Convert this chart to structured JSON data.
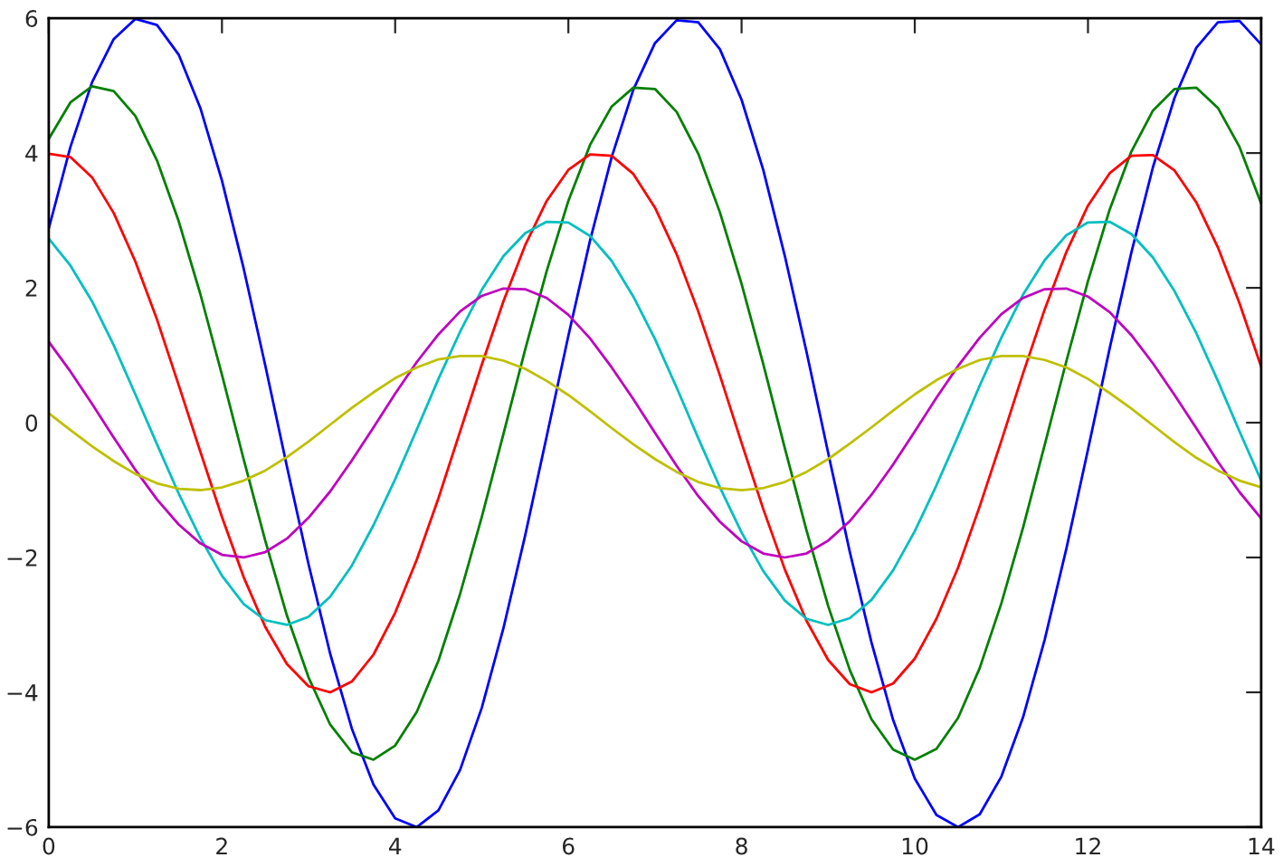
{
  "chart_data": {
    "type": "line",
    "x": [
      0,
      0.25,
      0.5,
      0.75,
      1,
      1.25,
      1.5,
      1.75,
      2,
      2.25,
      2.5,
      2.75,
      3,
      3.25,
      3.5,
      3.75,
      4,
      4.25,
      4.5,
      4.75,
      5,
      5.25,
      5.5,
      5.75,
      6,
      6.25,
      6.5,
      6.75,
      7,
      7.25,
      7.5,
      7.75,
      8,
      8.25,
      8.5,
      8.75,
      9,
      9.25,
      9.5,
      9.75,
      10,
      10.25,
      10.5,
      10.75,
      11,
      11.25,
      11.5,
      11.75,
      12,
      12.25,
      12.5,
      12.75,
      13,
      13.25,
      13.5,
      13.75,
      14
    ],
    "series": [
      {
        "color": "#0000ff",
        "values": [
          2.88,
          4.09,
          5.05,
          5.69,
          5.99,
          5.9,
          5.46,
          4.67,
          3.59,
          2.29,
          0.85,
          -0.65,
          -2.1,
          -3.43,
          -4.54,
          -5.37,
          -5.87,
          -6.0,
          -5.75,
          -5.15,
          -4.23,
          -3.05,
          -1.68,
          -0.2,
          1.29,
          2.7,
          3.94,
          4.94,
          5.63,
          5.97,
          5.94,
          5.54,
          4.79,
          3.75,
          2.47,
          1.05,
          -0.45,
          -1.92,
          -3.26,
          -4.41,
          -5.28,
          -5.82,
          -6.0,
          -5.81,
          -5.25,
          -4.37,
          -3.22,
          -1.87,
          -0.4,
          1.1,
          2.52,
          3.79,
          4.82,
          5.56,
          5.94,
          5.96,
          5.61
        ]
      },
      {
        "color": "#008000",
        "values": [
          4.21,
          4.75,
          4.99,
          4.92,
          4.55,
          3.89,
          2.99,
          1.91,
          0.71,
          -0.54,
          -1.75,
          -2.86,
          -3.78,
          -4.48,
          -4.89,
          -5.0,
          -4.79,
          -4.29,
          -3.53,
          -2.54,
          -1.4,
          -0.17,
          1.08,
          2.25,
          3.29,
          4.12,
          4.69,
          4.97,
          4.95,
          4.61,
          3.99,
          3.12,
          2.06,
          0.87,
          -0.38,
          -1.6,
          -2.72,
          -3.67,
          -4.4,
          -4.85,
          -5.0,
          -4.84,
          -4.38,
          -3.64,
          -2.68,
          -1.56,
          -0.33,
          0.91,
          2.1,
          3.16,
          4.02,
          4.63,
          4.95,
          4.97,
          4.67,
          4.09,
          3.25
        ]
      },
      {
        "color": "#ff0000",
        "values": [
          3.99,
          3.94,
          3.64,
          3.11,
          2.39,
          1.53,
          0.56,
          -0.43,
          -1.4,
          -2.29,
          -3.03,
          -3.58,
          -3.91,
          -4.0,
          -3.84,
          -3.44,
          -2.82,
          -2.03,
          -1.12,
          -0.13,
          0.86,
          1.8,
          2.63,
          3.29,
          3.75,
          3.98,
          3.96,
          3.69,
          3.19,
          2.5,
          1.65,
          0.7,
          -0.3,
          -1.28,
          -2.18,
          -2.94,
          -3.52,
          -3.88,
          -4.0,
          -3.87,
          -3.5,
          -2.91,
          -2.15,
          -1.24,
          -0.27,
          0.73,
          1.68,
          2.53,
          3.22,
          3.7,
          3.96,
          3.97,
          3.74,
          3.27,
          2.6,
          1.77,
          0.83
        ]
      },
      {
        "color": "#00bfbf",
        "values": [
          2.73,
          2.33,
          1.8,
          1.15,
          0.42,
          -0.32,
          -1.05,
          -1.71,
          -2.27,
          -2.69,
          -2.93,
          -3.0,
          -2.88,
          -2.58,
          -2.12,
          -1.52,
          -0.84,
          -0.1,
          0.65,
          1.35,
          1.97,
          2.47,
          2.81,
          2.98,
          2.97,
          2.77,
          2.4,
          1.87,
          1.24,
          0.52,
          -0.23,
          -0.96,
          -1.63,
          -2.2,
          -2.64,
          -2.91,
          -3.0,
          -2.9,
          -2.63,
          -2.19,
          -1.61,
          -0.93,
          -0.2,
          0.55,
          1.26,
          1.9,
          2.41,
          2.78,
          2.97,
          2.98,
          2.8,
          2.45,
          1.95,
          1.33,
          0.62,
          -0.13,
          -0.86
        ]
      },
      {
        "color": "#bf00bf",
        "values": [
          1.2,
          0.76,
          0.28,
          -0.22,
          -0.7,
          -1.14,
          -1.51,
          -1.79,
          -1.96,
          -2.0,
          -1.92,
          -1.72,
          -1.41,
          -1.02,
          -0.56,
          -0.07,
          0.43,
          0.9,
          1.31,
          1.65,
          1.88,
          1.99,
          1.98,
          1.85,
          1.6,
          1.25,
          0.82,
          0.35,
          -0.15,
          -0.64,
          -1.09,
          -1.47,
          -1.76,
          -1.94,
          -2.0,
          -1.94,
          -1.75,
          -1.46,
          -1.07,
          -0.62,
          -0.13,
          0.37,
          0.84,
          1.26,
          1.61,
          1.85,
          1.98,
          1.99,
          1.87,
          1.64,
          1.3,
          0.88,
          0.41,
          -0.08,
          -0.58,
          -1.03,
          -1.42
        ]
      },
      {
        "color": "#bfbf00",
        "values": [
          0.14,
          -0.11,
          -0.35,
          -0.57,
          -0.76,
          -0.9,
          -0.98,
          -1.0,
          -0.96,
          -0.86,
          -0.71,
          -0.51,
          -0.28,
          -0.03,
          0.22,
          0.45,
          0.66,
          0.82,
          0.94,
          0.99,
          0.99,
          0.92,
          0.8,
          0.62,
          0.41,
          0.17,
          -0.08,
          -0.32,
          -0.54,
          -0.73,
          -0.88,
          -0.97,
          -1.0,
          -0.97,
          -0.88,
          -0.73,
          -0.54,
          -0.31,
          -0.07,
          0.18,
          0.42,
          0.63,
          0.8,
          0.93,
          0.99,
          0.99,
          0.93,
          0.82,
          0.65,
          0.44,
          0.21,
          -0.04,
          -0.29,
          -0.52,
          -0.71,
          -0.86,
          -0.96
        ]
      }
    ],
    "xlim": [
      0,
      14
    ],
    "xticks": [
      0,
      2,
      4,
      6,
      8,
      10,
      12,
      14
    ],
    "ylim": [
      -6,
      6
    ],
    "yticks": [
      {
        "value": -6,
        "label": "−6"
      },
      {
        "value": -4,
        "label": "−4"
      },
      {
        "value": -2,
        "label": "−2"
      },
      0,
      2,
      4,
      6
    ],
    "line_style": "solid"
  }
}
